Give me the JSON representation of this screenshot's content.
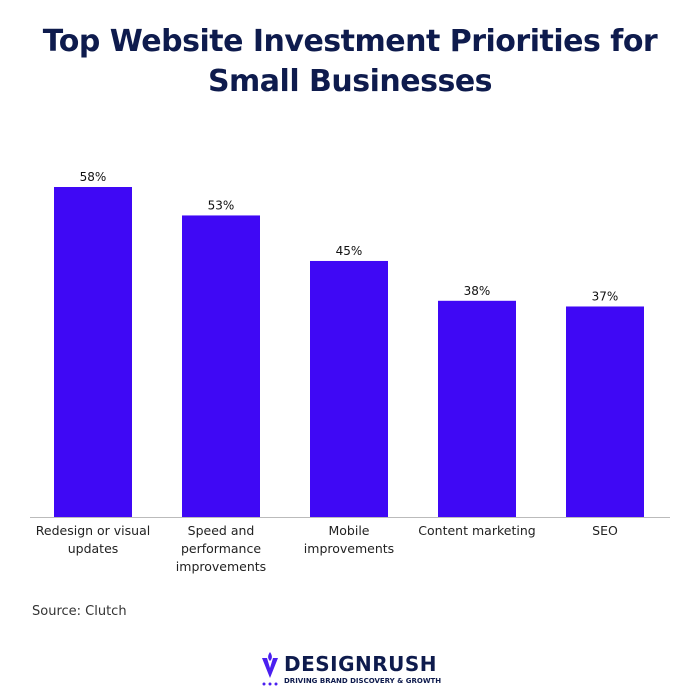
{
  "chart_data": {
    "type": "bar",
    "title": "Top Website Investment Priorities for Small Businesses",
    "categories": [
      "Redesign or visual updates",
      "Speed and performance improvements",
      "Mobile improvements",
      "Content marketing",
      "SEO"
    ],
    "values": [
      58,
      53,
      45,
      38,
      37
    ],
    "value_labels": [
      "58%",
      "53%",
      "45%",
      "38%",
      "37%"
    ],
    "color": "#3f08f5",
    "source": "Source: Clutch",
    "brand": {
      "name": "DESIGNRUSH",
      "tagline": "DRIVING BRAND DISCOVERY & GROWTH"
    }
  }
}
